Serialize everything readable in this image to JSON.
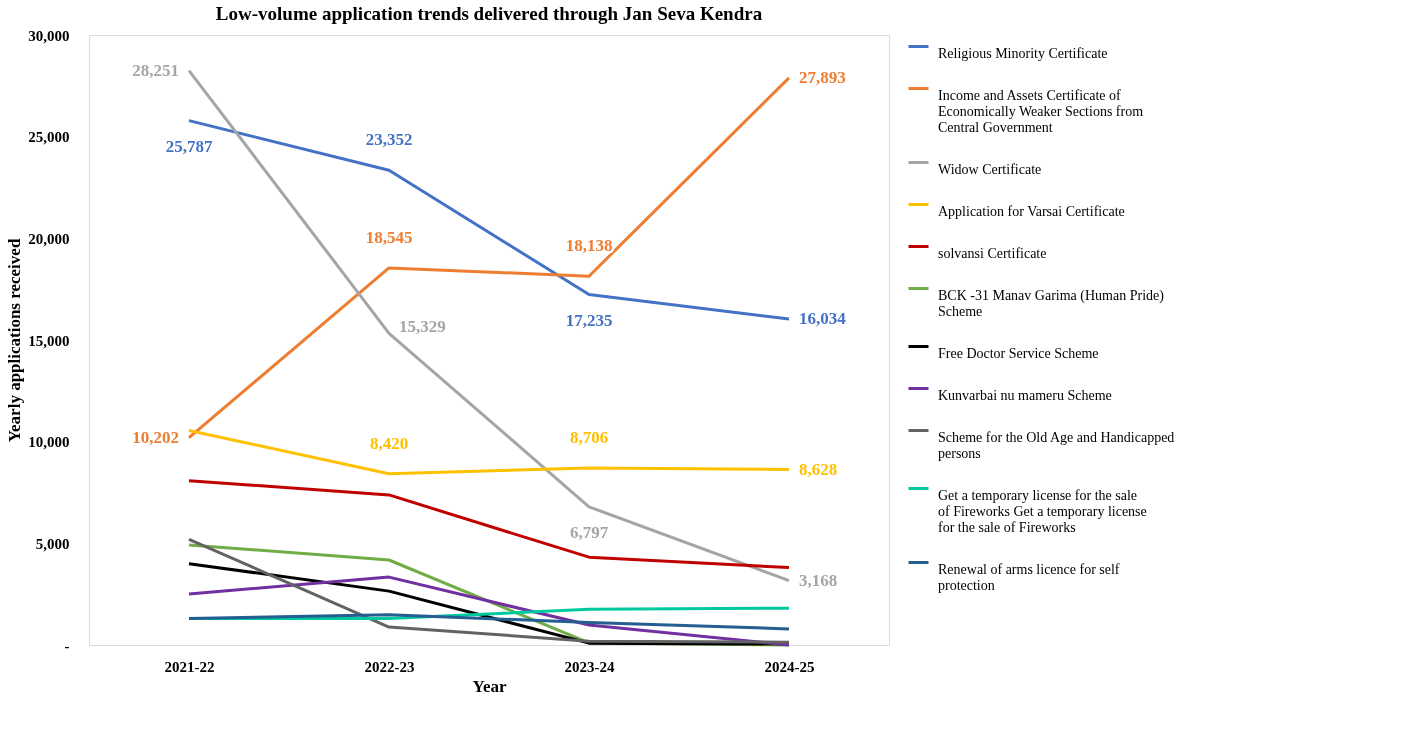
{
  "chart_data": {
    "type": "line",
    "title": "Low-volume application trends delivered through Jan Seva Kendra",
    "xlabel": "Year",
    "ylabel": "Yearly applications received",
    "categories": [
      "2021-22",
      "2022-23",
      "2023-24",
      "2024-25"
    ],
    "ylim": [
      0,
      30000
    ],
    "yticks": [
      {
        "value": 0,
        "label": "-"
      },
      {
        "value": 5000,
        "label": "5,000"
      },
      {
        "value": 10000,
        "label": "10,000"
      },
      {
        "value": 15000,
        "label": "15,000"
      },
      {
        "value": 20000,
        "label": "20,000"
      },
      {
        "value": 25000,
        "label": "25,000"
      },
      {
        "value": 30000,
        "label": "30,000"
      }
    ],
    "grid": false,
    "legend": "right",
    "marker": "none",
    "series": [
      {
        "name": "Religious Minority Certificate",
        "color": "#4472c4",
        "values": [
          25787,
          23352,
          17235,
          16034
        ],
        "value_labels": [
          "25,787",
          "23,352",
          "17,235",
          "16,034"
        ]
      },
      {
        "name": "Income and Assets Certificate of Economically Weaker Sections from Central Government",
        "color": "#ed7d31",
        "values": [
          10202,
          18545,
          18138,
          27893
        ],
        "value_labels": [
          "10,202",
          "18,545",
          "18,138",
          "27,893"
        ]
      },
      {
        "name": "Widow Certificate",
        "color": "#a5a5a5",
        "values": [
          28251,
          15329,
          6797,
          3168
        ],
        "value_labels": [
          "28,251",
          "15,329",
          "6,797",
          "3,168"
        ]
      },
      {
        "name": "Application for Varsai Certificate",
        "color": "#ffc000",
        "values": [
          10550,
          8420,
          8706,
          8628
        ],
        "value_labels": [
          null,
          "8,420",
          "8,706",
          "8,628"
        ]
      },
      {
        "name": "solvansi Certificate",
        "color": "#c00000",
        "values": [
          8080,
          7380,
          4320,
          3810
        ]
      },
      {
        "name": "BCK -31 Manav Garima (Human Pride) Scheme",
        "color": "#70ad47",
        "values": [
          4920,
          4180,
          100,
          0
        ]
      },
      {
        "name": "Free Doctor Service Scheme",
        "color": "#000000",
        "values": [
          4000,
          2650,
          90,
          50
        ]
      },
      {
        "name": "Kunvarbai nu mameru Scheme",
        "color": "#7030a0",
        "values": [
          2510,
          3340,
          980,
          0
        ]
      },
      {
        "name": "Scheme for the Old Age and Handicapped persons",
        "color": "#636363",
        "values": [
          5200,
          880,
          190,
          140
        ]
      },
      {
        "name": "Get a temporary license for the sale of Fireworks Get a temporary license for the sale of Fireworks",
        "color": "#00c9a0",
        "values": [
          1300,
          1300,
          1760,
          1810
        ]
      },
      {
        "name": "Renewal of arms licence for self protection",
        "color": "#255e91",
        "values": [
          1300,
          1490,
          1110,
          790
        ]
      }
    ]
  }
}
